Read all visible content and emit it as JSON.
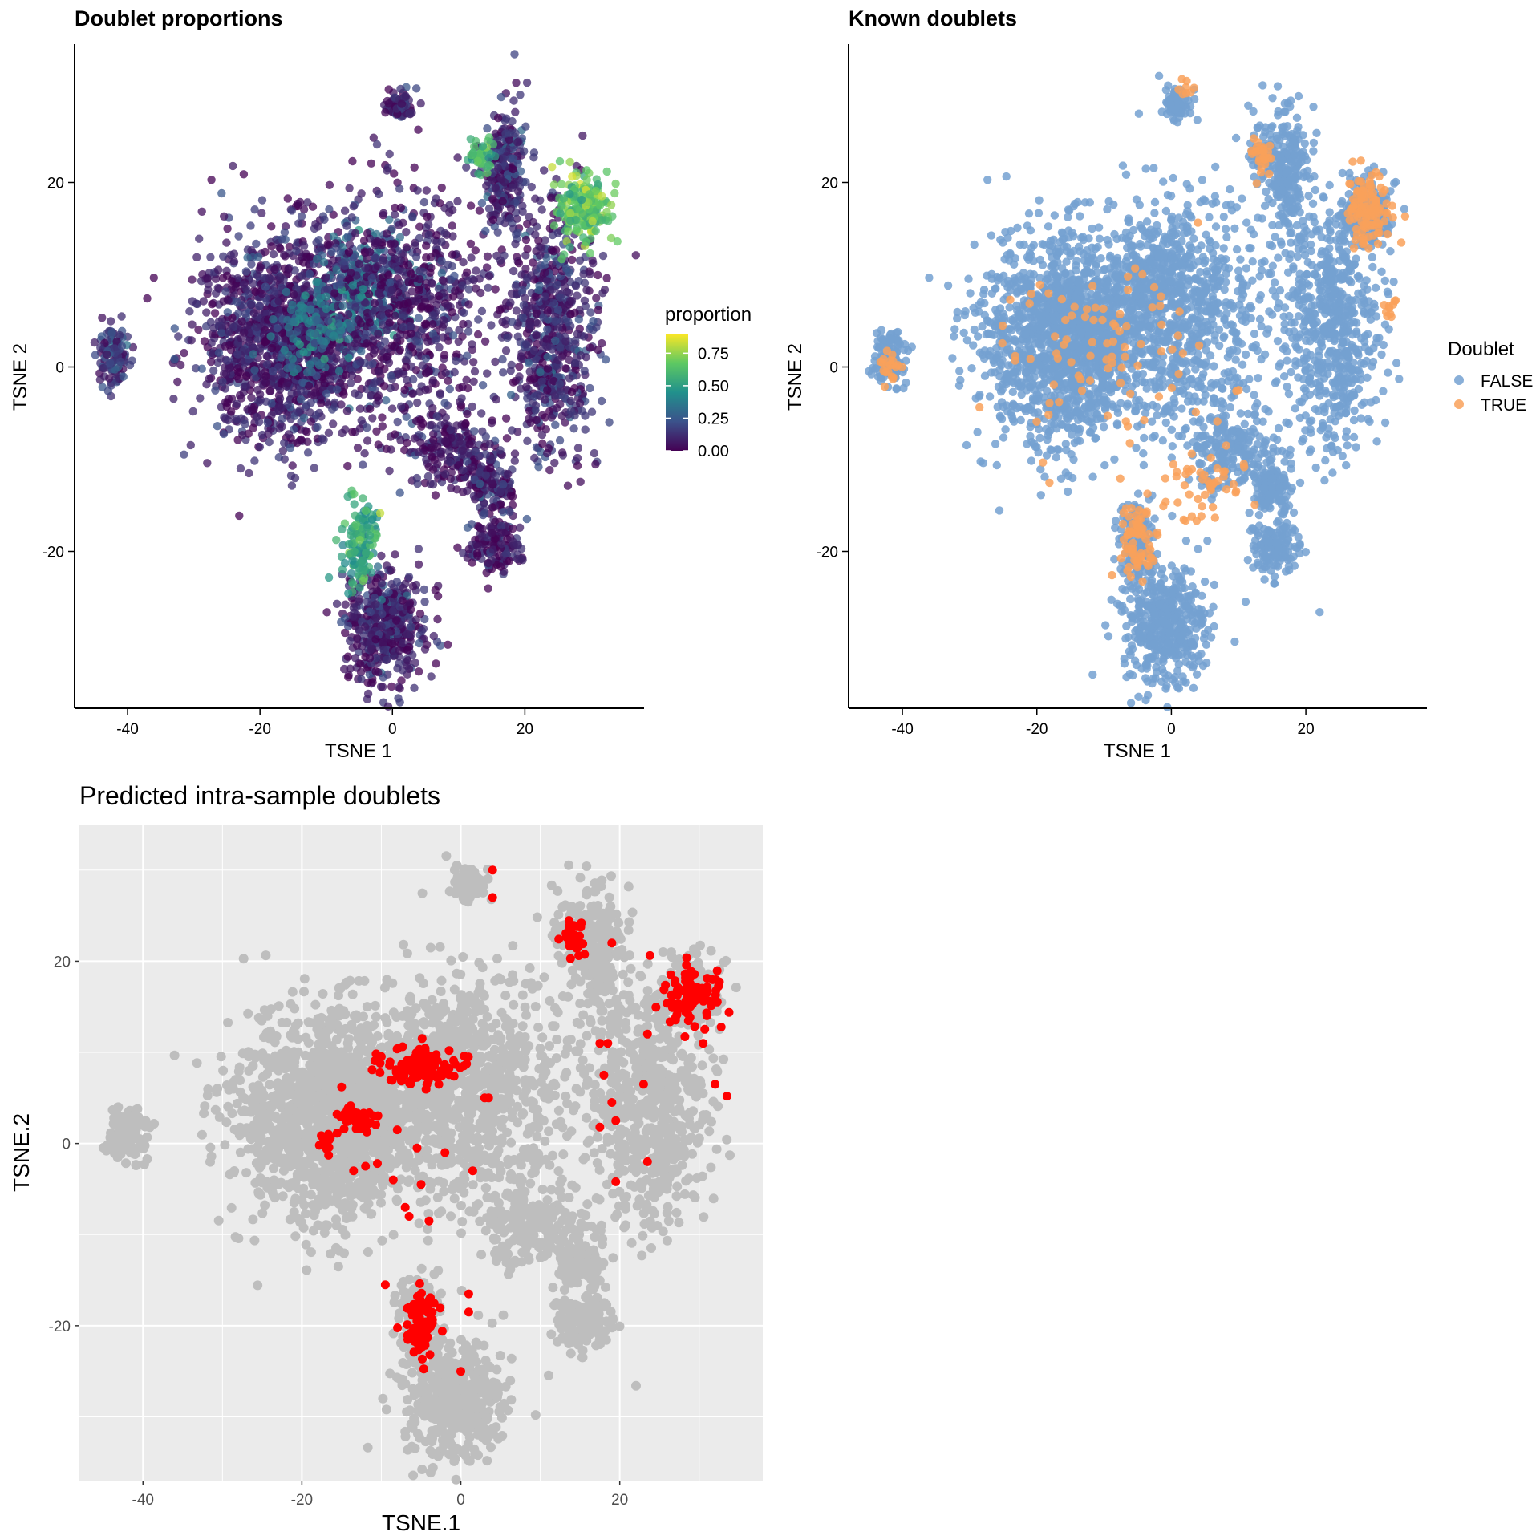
{
  "chart_data": [
    {
      "id": "doublet-proportions",
      "type": "scatter",
      "title": "Doublet proportions",
      "xlabel": "TSNE 1",
      "ylabel": "TSNE 2",
      "xlim": [
        -48,
        38
      ],
      "ylim": [
        -37,
        35
      ],
      "xticks": [
        -40,
        -20,
        0,
        20
      ],
      "yticks": [
        -20,
        0,
        20
      ],
      "grid": false,
      "legend": {
        "title": "proportion",
        "type": "colorbar",
        "range": [
          0,
          0.9
        ],
        "ticks": [
          0.75,
          0.5,
          0.25,
          0.0
        ],
        "tick_labels": [
          "0.75",
          "0.50",
          "0.25",
          "0.00"
        ],
        "colors": [
          "#440154",
          "#3b528b",
          "#21918c",
          "#5ec962",
          "#fde725"
        ],
        "placement": "right"
      },
      "clusters": [
        {
          "x": -16,
          "y": 3,
          "sx": 8.5,
          "sy": 7.5,
          "n": 1400,
          "value": 0.08
        },
        {
          "x": -3,
          "y": 9,
          "sx": 5,
          "sy": 4,
          "n": 250,
          "value": 0.32
        },
        {
          "x": 2,
          "y": 6,
          "sx": 9,
          "sy": 9,
          "n": 700,
          "value": 0.07
        },
        {
          "x": -12,
          "y": 4,
          "sx": 4,
          "sy": 3,
          "n": 120,
          "value": 0.35
        },
        {
          "x": 1,
          "y": 28.5,
          "sx": 1.4,
          "sy": 1.1,
          "n": 70,
          "value": 0.1
        },
        {
          "x": -42,
          "y": 1,
          "sx": 1.5,
          "sy": 2.1,
          "n": 110,
          "value": 0.15
        },
        {
          "x": 17,
          "y": 21,
          "sx": 2.2,
          "sy": 4.5,
          "n": 240,
          "value": 0.12
        },
        {
          "x": 13.5,
          "y": 23,
          "sx": 1.3,
          "sy": 1.5,
          "n": 40,
          "value": 0.6
        },
        {
          "x": 24,
          "y": 4,
          "sx": 4.5,
          "sy": 8.5,
          "n": 620,
          "value": 0.1
        },
        {
          "x": 29,
          "y": 17,
          "sx": 2.4,
          "sy": 2.5,
          "n": 190,
          "value": 0.65
        },
        {
          "x": 9,
          "y": -9,
          "sx": 4.5,
          "sy": 2.8,
          "n": 200,
          "value": 0.06
        },
        {
          "x": 15,
          "y": -13,
          "sx": 2.2,
          "sy": 2.2,
          "n": 120,
          "value": 0.08
        },
        {
          "x": 15.5,
          "y": -19.5,
          "sx": 2.6,
          "sy": 2.0,
          "n": 140,
          "value": 0.06
        },
        {
          "x": -1,
          "y": -28,
          "sx": 4.2,
          "sy": 4.2,
          "n": 450,
          "value": 0.08
        },
        {
          "x": -5,
          "y": -19,
          "sx": 1.8,
          "sy": 3.0,
          "n": 130,
          "value": 0.55
        }
      ]
    },
    {
      "id": "known-doublets",
      "type": "scatter",
      "title": "Known doublets",
      "xlabel": "TSNE 1",
      "ylabel": "TSNE 2",
      "xlim": [
        -48,
        38
      ],
      "ylim": [
        -37,
        35
      ],
      "xticks": [
        -40,
        -20,
        0,
        20
      ],
      "yticks": [
        -20,
        0,
        20
      ],
      "grid": false,
      "legend": {
        "title": "Doublet",
        "placement": "right",
        "entries": [
          {
            "label": "FALSE",
            "color": "#74a1d1"
          },
          {
            "label": "TRUE",
            "color": "#f9a15a"
          }
        ]
      },
      "true_clusters": [
        {
          "x": 29,
          "y": 17,
          "sx": 2.2,
          "sy": 2.4,
          "n": 110
        },
        {
          "x": 13.5,
          "y": 23,
          "sx": 1.2,
          "sy": 1.5,
          "n": 30
        },
        {
          "x": -5,
          "y": -19,
          "sx": 1.7,
          "sy": 2.8,
          "n": 70
        },
        {
          "x": -42,
          "y": -0.5,
          "sx": 1.2,
          "sy": 1.5,
          "n": 20
        },
        {
          "x": 33,
          "y": 6,
          "sx": 0.7,
          "sy": 1.2,
          "n": 10
        },
        {
          "x": 6,
          "y": -13,
          "sx": 4,
          "sy": 2.5,
          "n": 45
        },
        {
          "x": 2,
          "y": 30,
          "sx": 1.2,
          "sy": 0.6,
          "n": 8
        },
        {
          "x": -10,
          "y": 2,
          "sx": 12,
          "sy": 8,
          "n": 90
        }
      ]
    },
    {
      "id": "predicted-doublets",
      "type": "scatter",
      "title": "Predicted intra-sample doublets",
      "xlabel": "TSNE.1",
      "ylabel": "TSNE.2",
      "xlim": [
        -48,
        38
      ],
      "ylim": [
        -37,
        35
      ],
      "xticks": [
        -40,
        -20,
        0,
        20
      ],
      "yticks": [
        -20,
        0,
        20
      ],
      "grid": true,
      "colors": {
        "background": "#bebebe",
        "predicted": "#ff0000",
        "panel": "#ebebeb"
      },
      "predicted_clusters": [
        {
          "x": -5,
          "y": 8.5,
          "sx": 3.2,
          "sy": 1.4,
          "n": 110
        },
        {
          "x": -13,
          "y": 2.8,
          "sx": 1.5,
          "sy": 1.0,
          "n": 45
        },
        {
          "x": -17,
          "y": 0.2,
          "sx": 0.6,
          "sy": 0.9,
          "n": 12
        },
        {
          "x": 14,
          "y": 22.5,
          "sx": 1.1,
          "sy": 1.2,
          "n": 30
        },
        {
          "x": 29,
          "y": 16.5,
          "sx": 2.2,
          "sy": 2.2,
          "n": 90
        },
        {
          "x": -5,
          "y": -20,
          "sx": 1.3,
          "sy": 2.8,
          "n": 90
        }
      ],
      "predicted_points": [
        [
          -15,
          6.2
        ],
        [
          -10.5,
          -2.2
        ],
        [
          -13.5,
          -3
        ],
        [
          -12,
          -2.5
        ],
        [
          -8,
          1.5
        ],
        [
          -5.5,
          -0.5
        ],
        [
          -7,
          -7
        ],
        [
          -6.5,
          -8
        ],
        [
          -5,
          -4.5
        ],
        [
          -4,
          -8.5
        ],
        [
          -2,
          -1
        ],
        [
          1.5,
          -3
        ],
        [
          3,
          5
        ],
        [
          3.5,
          5
        ],
        [
          -8.5,
          -4
        ],
        [
          0,
          -25
        ],
        [
          1,
          -18.5
        ],
        [
          1,
          -16.5
        ],
        [
          4,
          27
        ],
        [
          4,
          30
        ],
        [
          19,
          22
        ],
        [
          17.5,
          11
        ],
        [
          18.5,
          11
        ],
        [
          23.5,
          12
        ],
        [
          23,
          6.5
        ],
        [
          18,
          7.5
        ],
        [
          19,
          4.5
        ],
        [
          19.5,
          2.5
        ],
        [
          17.5,
          1.8
        ],
        [
          19.5,
          -4.2
        ],
        [
          23.5,
          -2
        ],
        [
          30.5,
          11
        ],
        [
          32,
          6.5
        ],
        [
          33.5,
          5.2
        ],
        [
          -9.5,
          -15.5
        ]
      ]
    }
  ]
}
